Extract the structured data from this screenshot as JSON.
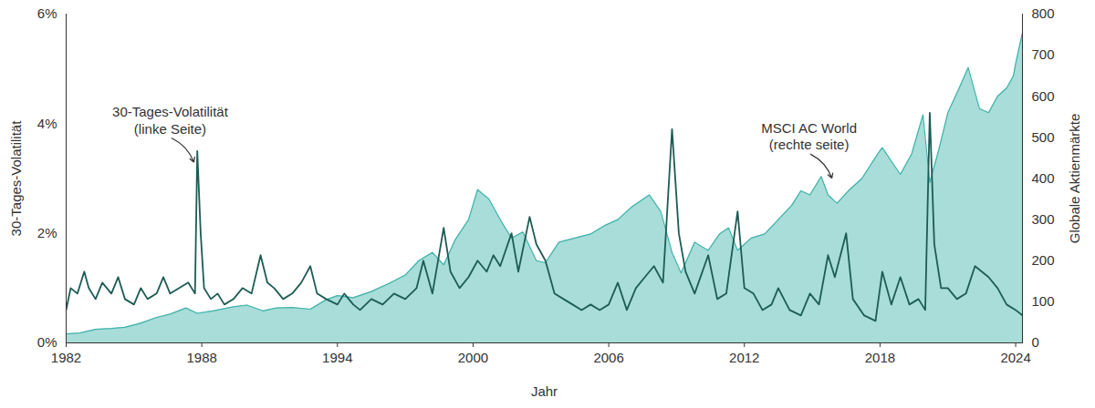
{
  "chart_data": {
    "type": "line",
    "xlabel": "Jahr",
    "ylabel": "30-Tages-Volatilität",
    "y2label": "Globale Aktienmärkte",
    "xlim": [
      1982,
      2024.3
    ],
    "xticks": [
      1982,
      1988,
      1994,
      2000,
      2006,
      2012,
      2018,
      2024
    ],
    "ylim": [
      0,
      6
    ],
    "yticks": [
      {
        "value": 0,
        "label": "0%"
      },
      {
        "value": 2,
        "label": "2%"
      },
      {
        "value": 4,
        "label": "4%"
      },
      {
        "value": 6,
        "label": "6%"
      }
    ],
    "y2lim": [
      0,
      800
    ],
    "y2ticks": [
      0,
      100,
      200,
      300,
      400,
      500,
      600,
      700,
      800
    ],
    "grid": false,
    "series": [
      {
        "name": "MSCI AC World",
        "type": "area",
        "axis": "y2",
        "color": "#3fb3aa",
        "x": [
          1982,
          1982.6,
          1983.3,
          1984,
          1984.6,
          1985.3,
          1986,
          1986.6,
          1987.3,
          1987.8,
          1988.5,
          1989.4,
          1990,
          1990.7,
          1991.3,
          1992,
          1992.8,
          1993.5,
          1994,
          1994.7,
          1995.5,
          1996.3,
          1997,
          1997.6,
          1998.2,
          1998.7,
          1999.2,
          1999.8,
          2000.2,
          2000.7,
          2001.2,
          2001.7,
          2002.2,
          2002.8,
          2003.2,
          2003.8,
          2004.5,
          2005.2,
          2005.8,
          2006.4,
          2007,
          2007.8,
          2008.3,
          2008.8,
          2009.2,
          2009.8,
          2010.4,
          2010.9,
          2011.3,
          2011.7,
          2012.3,
          2012.9,
          2013.5,
          2014.1,
          2014.5,
          2014.9,
          2015.4,
          2015.7,
          2016.1,
          2016.6,
          2017.2,
          2017.9,
          2018.1,
          2018.9,
          2019.4,
          2019.9,
          2020.2,
          2020.6,
          2021,
          2021.5,
          2021.9,
          2022.4,
          2022.8,
          2023.2,
          2023.6,
          2023.9,
          2024,
          2024.3
        ],
        "values": [
          22,
          24,
          33,
          35,
          38,
          48,
          62,
          70,
          85,
          72,
          78,
          88,
          92,
          78,
          85,
          86,
          82,
          105,
          115,
          110,
          125,
          145,
          165,
          200,
          220,
          190,
          250,
          300,
          373,
          350,
          300,
          255,
          270,
          200,
          195,
          245,
          255,
          265,
          285,
          300,
          330,
          360,
          320,
          220,
          170,
          245,
          225,
          265,
          280,
          225,
          255,
          265,
          300,
          335,
          370,
          360,
          405,
          360,
          340,
          370,
          400,
          460,
          475,
          410,
          460,
          555,
          390,
          470,
          560,
          620,
          670,
          570,
          560,
          600,
          620,
          650,
          680,
          755
        ]
      },
      {
        "name": "30-Tages-Volatilität",
        "type": "line",
        "axis": "y",
        "color": "#1d5c55",
        "x": [
          1982,
          1982.2,
          1982.5,
          1982.8,
          1983,
          1983.3,
          1983.6,
          1984,
          1984.3,
          1984.6,
          1985,
          1985.3,
          1985.6,
          1986,
          1986.3,
          1986.6,
          1987,
          1987.4,
          1987.7,
          1987.8,
          1987.95,
          1988.1,
          1988.4,
          1988.7,
          1989,
          1989.4,
          1989.8,
          1990.2,
          1990.6,
          1990.9,
          1991.2,
          1991.6,
          1992,
          1992.4,
          1992.8,
          1993.1,
          1993.5,
          1994,
          1994.3,
          1994.7,
          1995,
          1995.5,
          1996,
          1996.5,
          1997,
          1997.5,
          1997.8,
          1998.2,
          1998.7,
          1999,
          1999.4,
          1999.8,
          2000.2,
          2000.6,
          2000.9,
          2001.2,
          2001.7,
          2002,
          2002.5,
          2002.8,
          2003.2,
          2003.6,
          2004,
          2004.4,
          2004.8,
          2005.2,
          2005.6,
          2006,
          2006.4,
          2006.8,
          2007.2,
          2007.6,
          2008,
          2008.4,
          2008.8,
          2009.1,
          2009.4,
          2009.8,
          2010.4,
          2010.8,
          2011.2,
          2011.7,
          2012,
          2012.4,
          2012.8,
          2013.2,
          2013.5,
          2014,
          2014.5,
          2014.9,
          2015.3,
          2015.7,
          2016,
          2016.5,
          2016.8,
          2017.3,
          2017.8,
          2018.1,
          2018.5,
          2018.9,
          2019.3,
          2019.7,
          2020,
          2020.2,
          2020.4,
          2020.7,
          2021,
          2021.4,
          2021.8,
          2022.2,
          2022.5,
          2022.8,
          2023.2,
          2023.6,
          2024,
          2024.3
        ],
        "values": [
          0.6,
          1.0,
          0.9,
          1.3,
          1.0,
          0.8,
          1.1,
          0.9,
          1.2,
          0.8,
          0.7,
          1.0,
          0.8,
          0.9,
          1.2,
          0.9,
          1.0,
          1.1,
          0.9,
          3.5,
          2.0,
          1.0,
          0.8,
          0.9,
          0.7,
          0.8,
          1.0,
          0.9,
          1.6,
          1.1,
          1.0,
          0.8,
          0.9,
          1.1,
          1.4,
          0.9,
          0.8,
          0.7,
          0.9,
          0.7,
          0.6,
          0.8,
          0.7,
          0.9,
          0.8,
          1.0,
          1.5,
          0.9,
          2.1,
          1.3,
          1.0,
          1.2,
          1.5,
          1.3,
          1.6,
          1.4,
          2.0,
          1.3,
          2.3,
          1.8,
          1.5,
          0.9,
          0.8,
          0.7,
          0.6,
          0.7,
          0.6,
          0.7,
          1.1,
          0.6,
          1.0,
          1.2,
          1.4,
          1.1,
          3.9,
          2.0,
          1.3,
          0.9,
          1.6,
          0.8,
          0.9,
          2.4,
          1.0,
          0.9,
          0.6,
          0.7,
          1.0,
          0.6,
          0.5,
          0.9,
          0.7,
          1.6,
          1.2,
          2.0,
          0.8,
          0.5,
          0.4,
          1.3,
          0.7,
          1.2,
          0.7,
          0.8,
          0.6,
          4.2,
          1.8,
          1.0,
          1.0,
          0.8,
          0.9,
          1.4,
          1.3,
          1.2,
          1.0,
          0.7,
          0.6,
          0.5
        ]
      }
    ],
    "annotations": [
      {
        "text": "30-Tages-Volatilität\n(linke Seite)",
        "axis": "y",
        "xy": [
          1987.65,
          3.3
        ],
        "xytext": [
          1986.6,
          3.75
        ]
      },
      {
        "text": "MSCI AC World\n(rechte seite)",
        "axis": "y2",
        "xy": [
          2015.87,
          401
        ],
        "xytext": [
          2014.86,
          461
        ]
      }
    ]
  }
}
